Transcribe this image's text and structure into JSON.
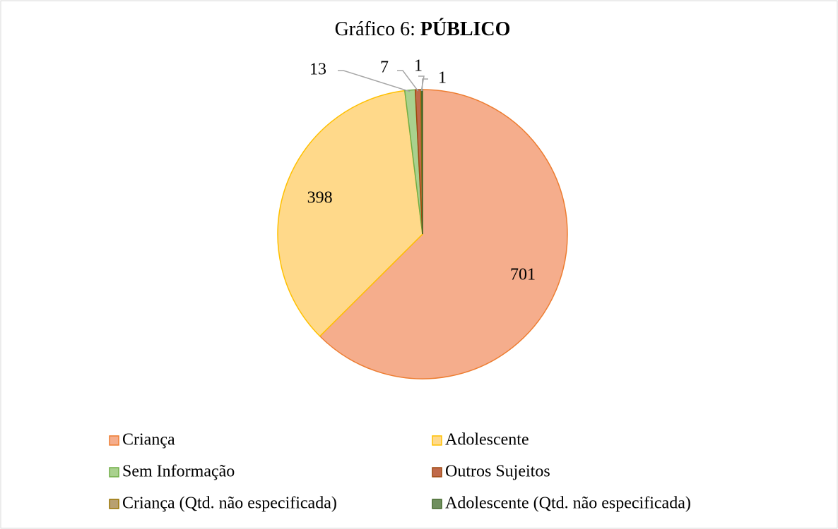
{
  "chart_data": {
    "type": "pie",
    "title": [
      "Gráfico 6:",
      "PÚBLICO"
    ],
    "categories": [
      "Criança",
      "Adolescente",
      "Sem Informação",
      "Outros Sujeitos",
      "Criança (Qtd. não especificada)",
      "Adolescente (Qtd. não especificada)"
    ],
    "values": [
      701,
      398,
      13,
      7,
      1,
      1
    ],
    "colors": [
      "#f5ad8c",
      "#ffd98a",
      "#a9d18e",
      "#c0694a",
      "#b8a070",
      "#6f8f5e"
    ],
    "stroke_colors": [
      "#ed7d31",
      "#ffc000",
      "#70ad47",
      "#9e480e",
      "#997300",
      "#43682b"
    ],
    "legend": "bottom"
  }
}
